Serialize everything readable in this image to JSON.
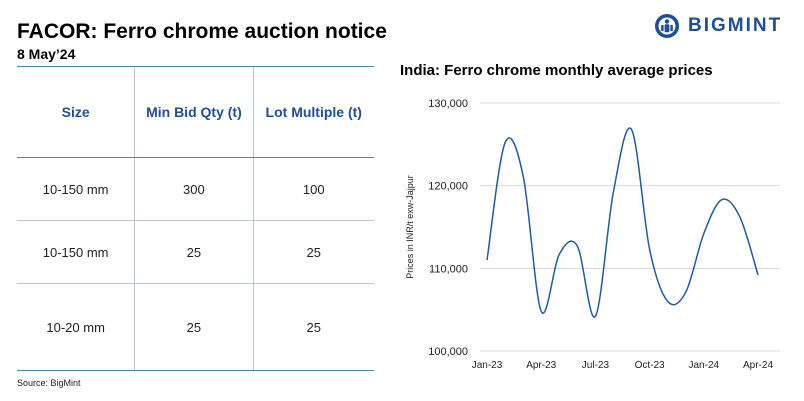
{
  "header": {
    "title": "FACOR: Ferro chrome auction notice",
    "date": "8 May’24",
    "logo_text": "BIGMINT",
    "brand_color": "#1f4e96"
  },
  "table": {
    "columns": [
      "Size",
      "Min Bid Qty (t)",
      "Lot Multiple (t)"
    ],
    "rows": [
      [
        "10-150 mm",
        "300",
        "100"
      ],
      [
        "10-150 mm",
        "25",
        "25"
      ],
      [
        "10-20 mm",
        "25",
        "25"
      ]
    ]
  },
  "source": "Source: BigMint",
  "chart_data": {
    "type": "line",
    "title": "India: Ferro chrome monthly average prices",
    "ylabel": "Prices in INR/t exw-Jajpur",
    "xlabel": "",
    "ylim": [
      100000,
      130000
    ],
    "yticks": [
      100000,
      110000,
      120000,
      130000
    ],
    "ytick_labels": [
      "100,000",
      "110,000",
      "120,000",
      "130,000"
    ],
    "x_ticks": [
      "Jan-23",
      "Apr-23",
      "Jul-23",
      "Oct-23",
      "Jan-24",
      "Apr-24"
    ],
    "x": [
      "Jan-23",
      "Feb-23",
      "Mar-23",
      "Apr-23",
      "May-23",
      "Jun-23",
      "Jul-23",
      "Aug-23",
      "Sep-23",
      "Oct-23",
      "Nov-23",
      "Dec-23",
      "Jan-24",
      "Feb-24",
      "Mar-24",
      "Apr-24"
    ],
    "series": [
      {
        "values": [
          111000,
          125200,
          121200,
          104800,
          111700,
          112700,
          104200,
          119300,
          126800,
          112300,
          106000,
          107100,
          114200,
          118300,
          116200,
          109200
        ],
        "color": "#1f5aa6"
      }
    ],
    "grid": true,
    "legend": "none"
  }
}
